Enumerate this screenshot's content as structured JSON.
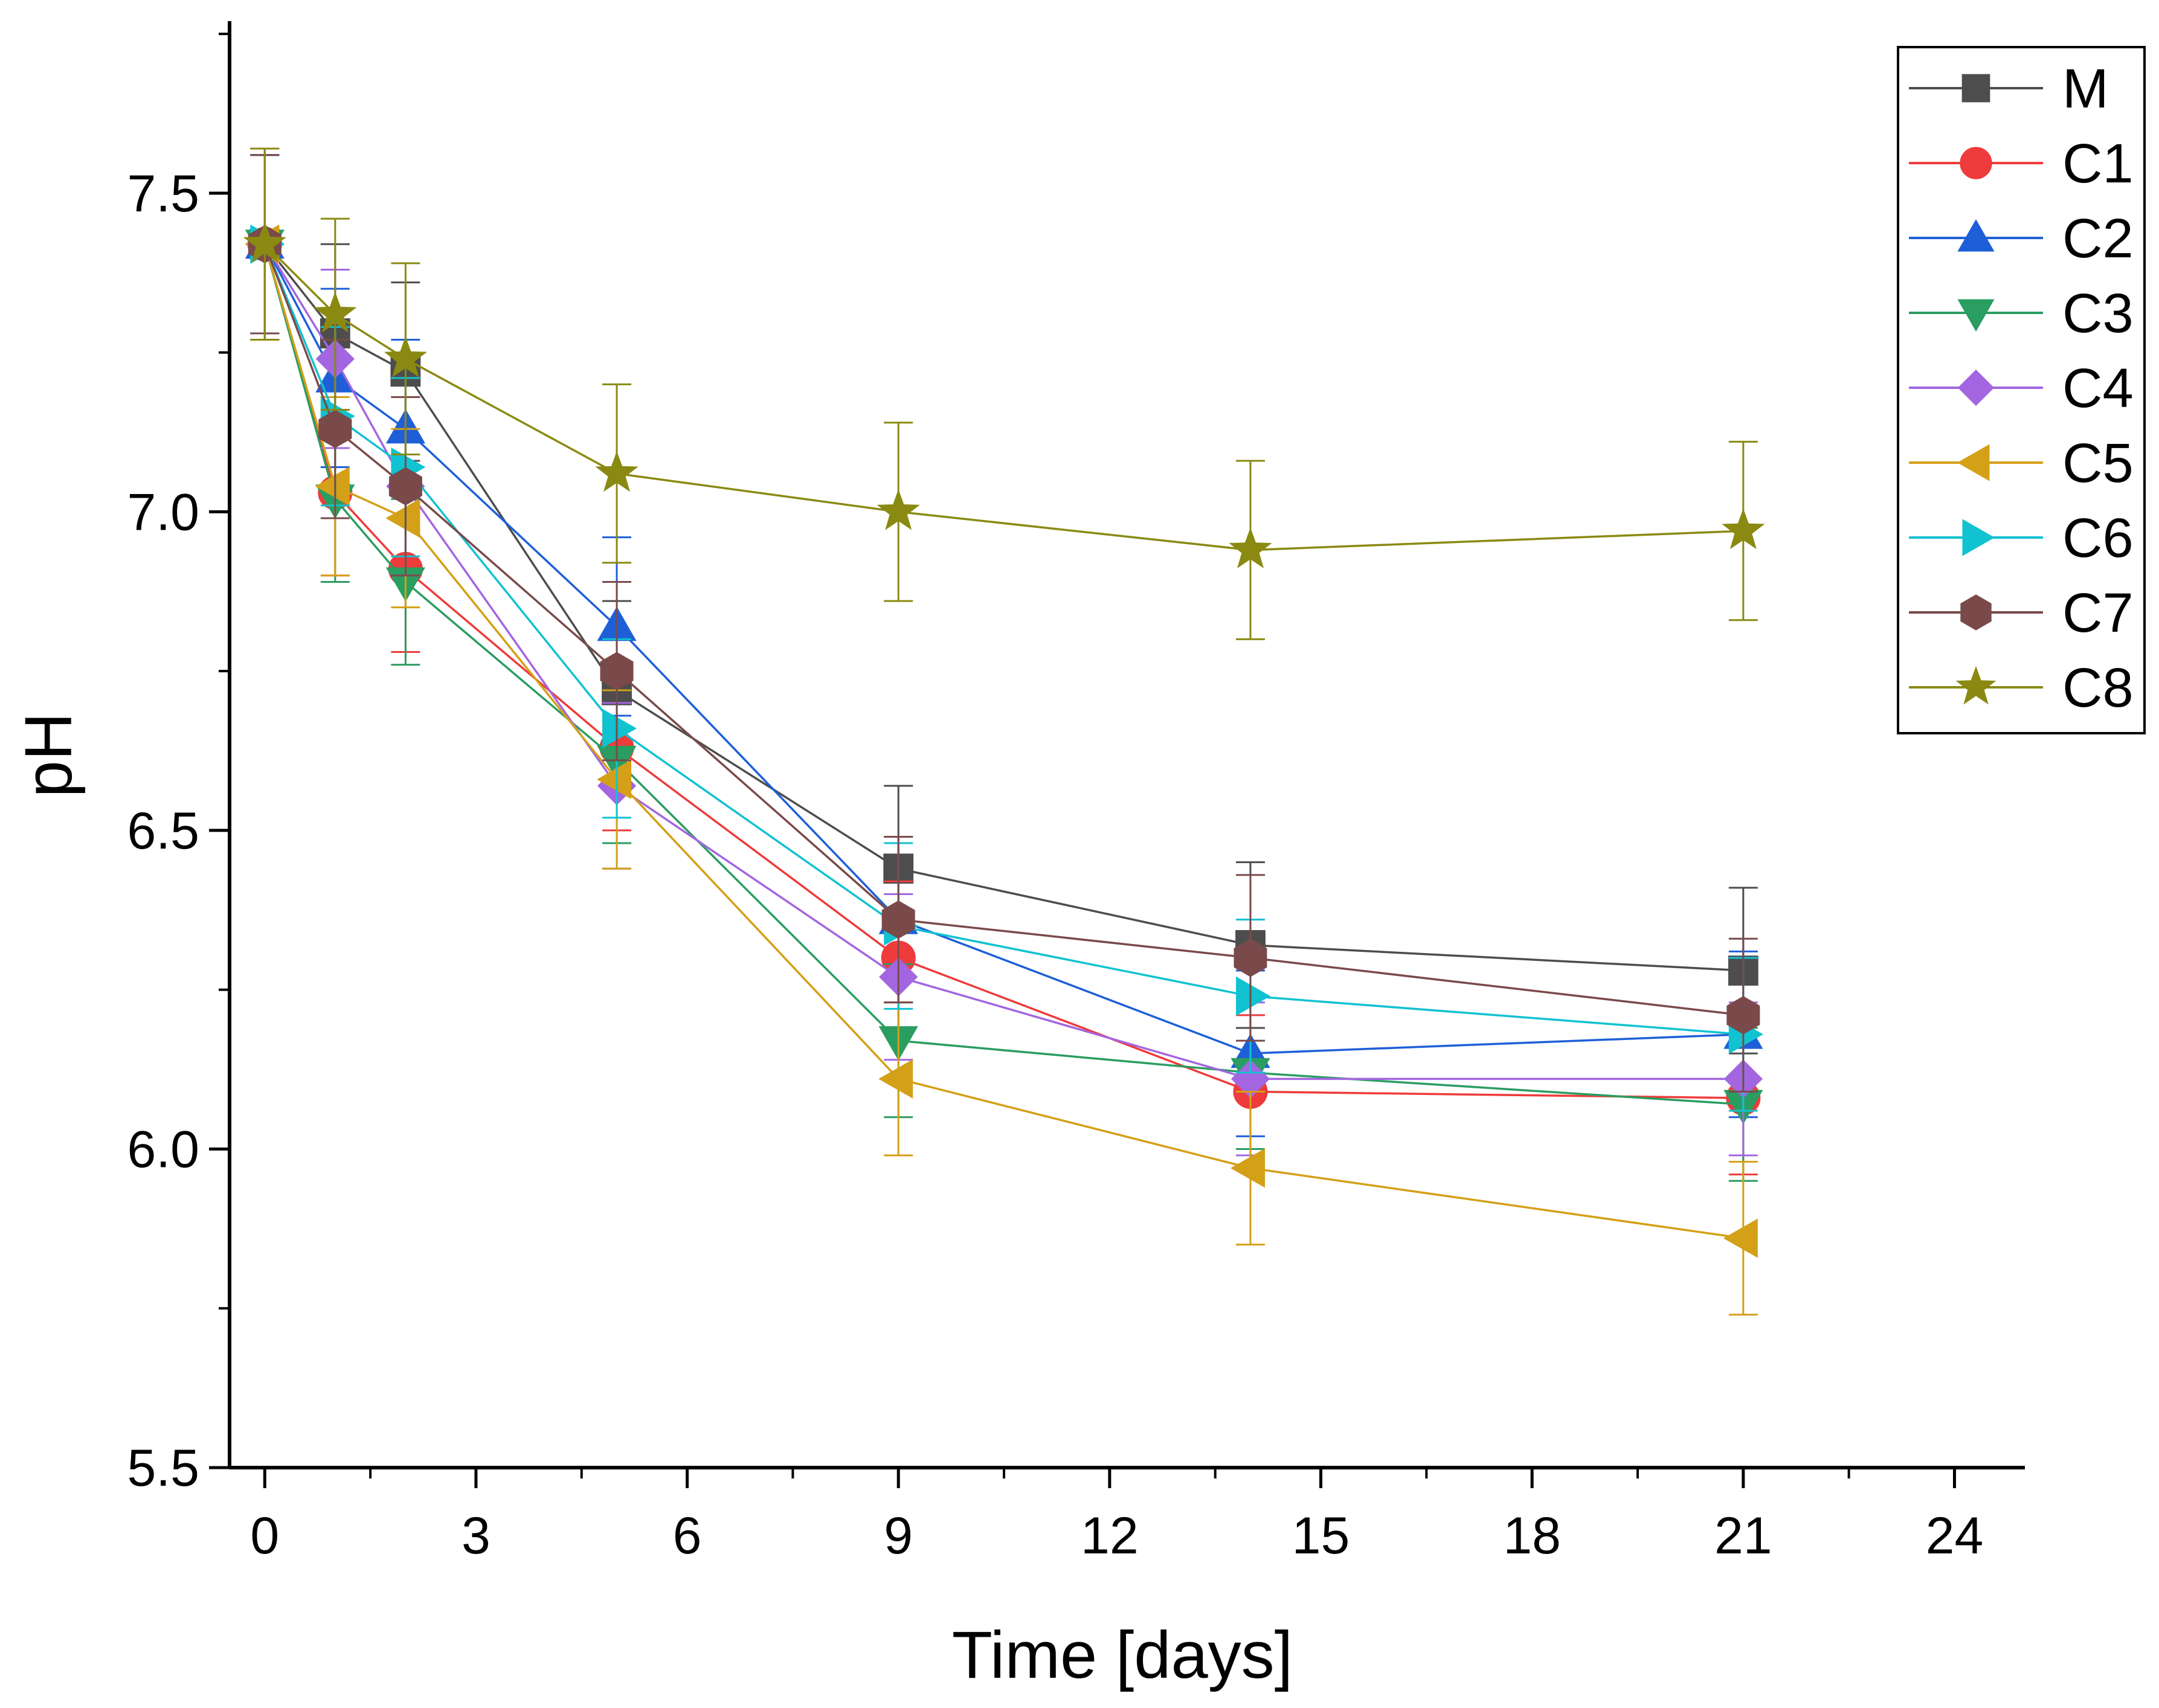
{
  "chart_data": {
    "type": "line",
    "title": "",
    "xlabel": "Time [days]",
    "ylabel": "pH",
    "xlim": [
      -0.5,
      25.0
    ],
    "ylim": [
      5.5,
      7.77
    ],
    "xticks": [
      0,
      3,
      6,
      9,
      12,
      15,
      18,
      21,
      24
    ],
    "xtick_labels": [
      "0",
      "3",
      "6",
      "9",
      "12",
      "15",
      "18",
      "21",
      "24"
    ],
    "yticks": [
      5.5,
      6.0,
      6.5,
      7.0,
      7.5
    ],
    "ytick_labels": [
      "5.5",
      "6.0",
      "6.5",
      "7.0",
      "7.5"
    ],
    "grid": false,
    "legend_position": "top-right",
    "x": [
      0,
      1,
      2,
      5,
      9,
      14,
      21
    ],
    "series": [
      {
        "name": "M",
        "color": "#4d4d4d",
        "marker": "square",
        "values": [
          7.42,
          7.28,
          7.22,
          6.72,
          6.44,
          6.32,
          6.28
        ],
        "errors": [
          0.15,
          0.14,
          0.14,
          0.14,
          0.13,
          0.13,
          0.13
        ]
      },
      {
        "name": "C1",
        "color": "#ee3b3b",
        "marker": "circle",
        "values": [
          7.42,
          7.03,
          6.91,
          6.63,
          6.3,
          6.09,
          6.08
        ],
        "errors": [
          0.14,
          0.13,
          0.13,
          0.13,
          0.12,
          0.12,
          0.12
        ]
      },
      {
        "name": "C2",
        "color": "#1e5fd8",
        "marker": "triangle-up",
        "values": [
          7.42,
          7.21,
          7.13,
          6.82,
          6.36,
          6.15,
          6.18
        ],
        "errors": [
          0.14,
          0.14,
          0.14,
          0.14,
          0.13,
          0.13,
          0.13
        ]
      },
      {
        "name": "C3",
        "color": "#2a9d61",
        "marker": "triangle-down",
        "values": [
          7.42,
          7.02,
          6.89,
          6.61,
          6.17,
          6.12,
          6.07
        ],
        "errors": [
          0.14,
          0.13,
          0.13,
          0.13,
          0.12,
          0.12,
          0.12
        ]
      },
      {
        "name": "C4",
        "color": "#a366e0",
        "marker": "diamond",
        "values": [
          7.42,
          7.24,
          7.04,
          6.57,
          6.27,
          6.11,
          6.11
        ],
        "errors": [
          0.14,
          0.14,
          0.14,
          0.13,
          0.13,
          0.12,
          0.12
        ]
      },
      {
        "name": "C5",
        "color": "#d4a017",
        "marker": "triangle-left",
        "values": [
          7.42,
          7.04,
          6.99,
          6.58,
          6.11,
          5.97,
          5.86
        ],
        "errors": [
          0.15,
          0.14,
          0.14,
          0.14,
          0.12,
          0.12,
          0.12
        ]
      },
      {
        "name": "C6",
        "color": "#11c2d1",
        "marker": "triangle-right",
        "values": [
          7.42,
          7.15,
          7.07,
          6.66,
          6.35,
          6.24,
          6.18
        ],
        "errors": [
          0.14,
          0.14,
          0.14,
          0.14,
          0.13,
          0.12,
          0.12
        ]
      },
      {
        "name": "C7",
        "color": "#7a4a4a",
        "marker": "hexagon",
        "values": [
          7.42,
          7.13,
          7.04,
          6.75,
          6.36,
          6.3,
          6.21
        ],
        "errors": [
          0.14,
          0.14,
          0.14,
          0.14,
          0.13,
          0.13,
          0.12
        ]
      },
      {
        "name": "C8",
        "color": "#8a8a12",
        "marker": "star",
        "values": [
          7.42,
          7.31,
          7.24,
          7.06,
          7.0,
          6.94,
          6.97
        ],
        "errors": [
          0.15,
          0.15,
          0.15,
          0.14,
          0.14,
          0.14,
          0.14
        ]
      }
    ]
  }
}
